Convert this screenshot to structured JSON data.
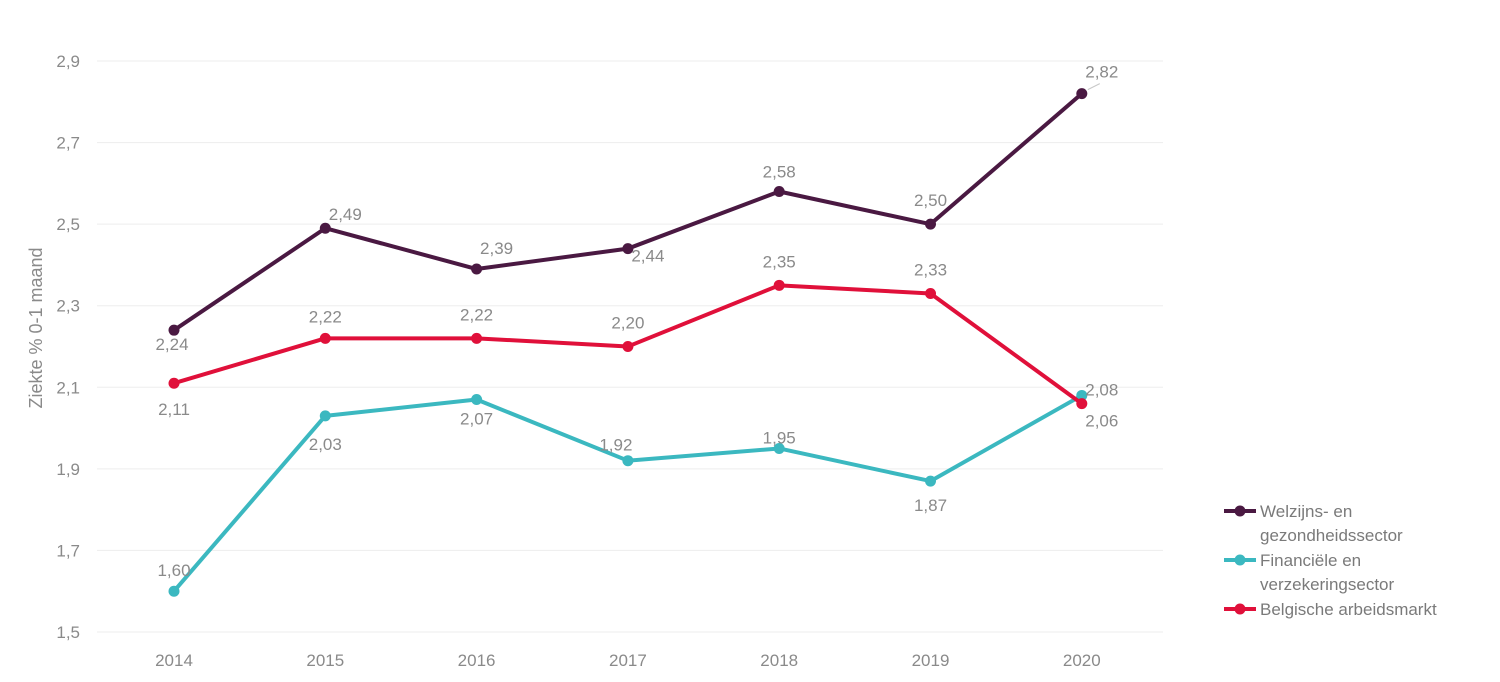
{
  "chart_data": {
    "type": "line",
    "x": [
      "2014",
      "2015",
      "2016",
      "2017",
      "2018",
      "2019",
      "2020"
    ],
    "ylabel": "Ziekte % 0-1 maand",
    "ylim": [
      1.5,
      2.9
    ],
    "yticks": [
      "1,5",
      "1,7",
      "1,9",
      "2,1",
      "2,3",
      "2,5",
      "2,7",
      "2,9"
    ],
    "grid": true,
    "legend_position": "bottom-right",
    "series": [
      {
        "name": "Welzijns- en gezondheidssector",
        "legend_lines": [
          "Welzijns- en",
          "gezondheidssector"
        ],
        "color": "#4a1942",
        "values": [
          2.24,
          2.49,
          2.39,
          2.44,
          2.58,
          2.5,
          2.82
        ],
        "labels": [
          "2,24",
          "2,49",
          "2,39",
          "2,44",
          "2,58",
          "2,50",
          "2,82"
        ]
      },
      {
        "name": "Financiële en verzekeringsector",
        "legend_lines": [
          "Financiële en",
          "verzekeringsector"
        ],
        "color": "#3bb8c0",
        "values": [
          1.6,
          2.03,
          2.07,
          1.92,
          1.95,
          1.87,
          2.08
        ],
        "labels": [
          "1,60",
          "2,03",
          "2,07",
          "1,92",
          "1,95",
          "1,87",
          "2,08"
        ]
      },
      {
        "name": "Belgische arbeidsmarkt",
        "legend_lines": [
          "Belgische arbeidsmarkt"
        ],
        "color": "#e0103a",
        "values": [
          2.11,
          2.22,
          2.22,
          2.2,
          2.35,
          2.33,
          2.06
        ],
        "labels": [
          "2,11",
          "2,22",
          "2,22",
          "2,20",
          "2,35",
          "2,33",
          "2,06"
        ]
      }
    ]
  }
}
